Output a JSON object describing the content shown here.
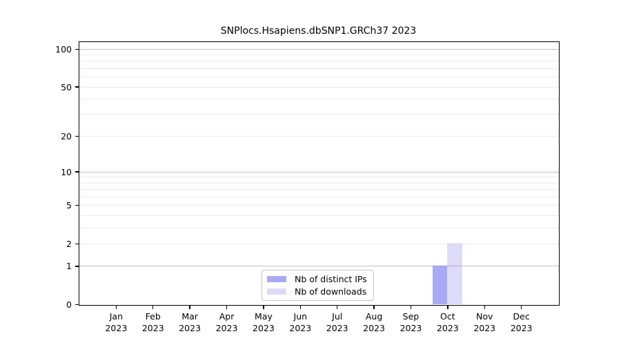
{
  "chart_data": {
    "type": "bar",
    "title": "SNPlocs.Hsapiens.dbSNP1.GRCh37 2023",
    "categories": [
      "Jan",
      "Feb",
      "Mar",
      "Apr",
      "May",
      "Jun",
      "Jul",
      "Aug",
      "Sep",
      "Oct",
      "Nov",
      "Dec"
    ],
    "x_tick_year": "2023",
    "series": [
      {
        "name": "Nb of distinct IPs",
        "color": "#a9a9f6",
        "values": [
          0,
          0,
          0,
          0,
          0,
          0,
          0,
          0,
          0,
          1,
          0,
          0
        ]
      },
      {
        "name": "Nb of downloads",
        "color": "#dcdcf8",
        "values": [
          0,
          0,
          0,
          0,
          0,
          0,
          0,
          0,
          0,
          2,
          0,
          0
        ]
      }
    ],
    "yticks": [
      0,
      1,
      2,
      5,
      10,
      20,
      50,
      100
    ],
    "ylim": [
      0,
      113
    ],
    "yscale": "log1p",
    "grid": true,
    "legend_position": "lower center",
    "colors": {
      "spine": "#000000",
      "background": "#ffffff",
      "major_grid": "#bfbfbf",
      "minor_grid": "#ebebeb"
    }
  }
}
